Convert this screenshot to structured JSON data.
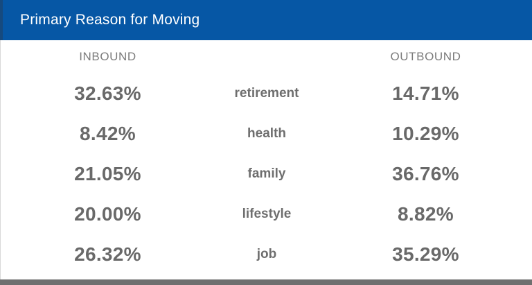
{
  "header": {
    "title": "Primary Reason for Moving"
  },
  "columns": {
    "inbound_label": "INBOUND",
    "outbound_label": "OUTBOUND"
  },
  "rows": [
    {
      "inbound": "32.63%",
      "reason": "retirement",
      "outbound": "14.71%"
    },
    {
      "inbound": "8.42%",
      "reason": "health",
      "outbound": "10.29%"
    },
    {
      "inbound": "21.05%",
      "reason": "family",
      "outbound": "36.76%"
    },
    {
      "inbound": "20.00%",
      "reason": "lifestyle",
      "outbound": "8.82%"
    },
    {
      "inbound": "26.32%",
      "reason": "job",
      "outbound": "35.29%"
    }
  ],
  "chart_data": {
    "type": "table",
    "title": "Primary Reason for Moving",
    "categories": [
      "retirement",
      "health",
      "family",
      "lifestyle",
      "job"
    ],
    "series": [
      {
        "name": "INBOUND",
        "values": [
          32.63,
          8.42,
          21.05,
          20.0,
          26.32
        ]
      },
      {
        "name": "OUTBOUND",
        "values": [
          14.71,
          10.29,
          36.76,
          8.82,
          35.29
        ]
      }
    ],
    "value_format": "percent",
    "layout": "three-column table: inbound % | reason | outbound %"
  },
  "colors": {
    "header_bg": "#0657a5",
    "header_accent": "#164a7e",
    "header_text": "#ffffff",
    "column_header_text": "#7b7b7b",
    "value_text": "#696969",
    "reason_text": "#6e6e6e",
    "bottom_bar": "#6f6f6f",
    "card_border": "#d9d9d9",
    "background": "#ffffff"
  }
}
